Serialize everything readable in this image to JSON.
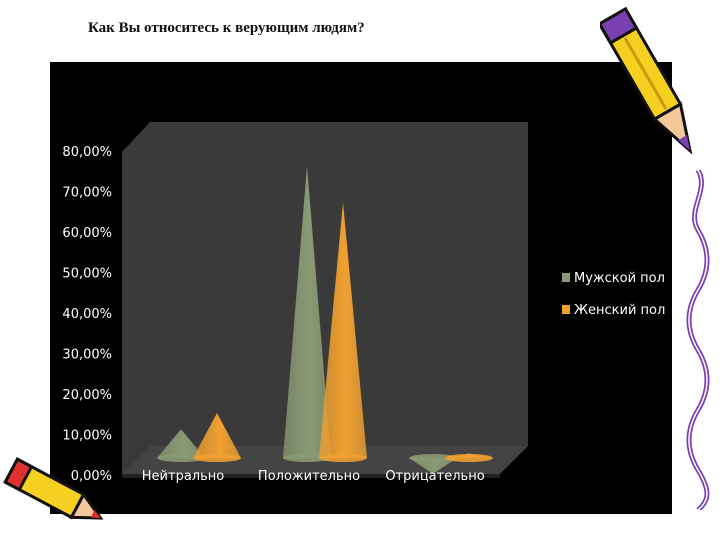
{
  "page": {
    "title": "Как Вы относитесь к верующим людям?"
  },
  "colors": {
    "background": "#000000",
    "plot_wall": "#3a3a3a",
    "series_male": "#8a9a74",
    "series_female": "#f0a030",
    "text": "#ffffff"
  },
  "chart_data": {
    "type": "bar",
    "style": "3d-cone",
    "title": "",
    "xlabel": "",
    "ylabel": "",
    "categories": [
      "Нейтрально",
      "Положительно",
      "Отрицательно"
    ],
    "series": [
      {
        "name": "Мужской пол",
        "values": [
          15,
          80,
          4
        ]
      },
      {
        "name": "Женский пол",
        "values": [
          19,
          71,
          9
        ]
      }
    ],
    "ylim": [
      0,
      80
    ],
    "yticks": [
      "0,00%",
      "10,00%",
      "20,00%",
      "30,00%",
      "40,00%",
      "50,00%",
      "60,00%",
      "70,00%",
      "80,00%"
    ],
    "legend_position": "right",
    "grid": false
  },
  "decorations": {
    "pencil_top_right": "pencil-icon",
    "pencil_bottom_left": "pencil-icon",
    "squiggle_right": "squiggle-border"
  }
}
